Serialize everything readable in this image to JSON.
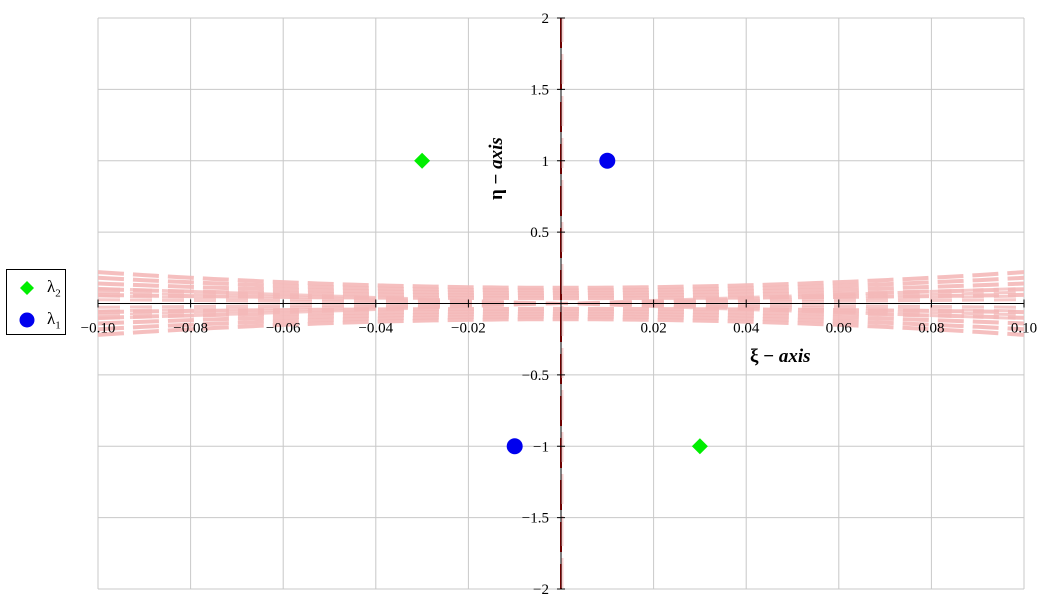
{
  "chart_data": {
    "type": "scatter",
    "xlabel": {
      "symbol": "ξ",
      "dash": " − ",
      "word": "axis"
    },
    "ylabel": {
      "symbol": "η",
      "dash": " − ",
      "word": "axis"
    },
    "xlim": [
      -0.1,
      0.1
    ],
    "ylim": [
      -2,
      2
    ],
    "xticks": [
      -0.1,
      -0.08,
      -0.06,
      -0.04,
      -0.02,
      0.02,
      0.04,
      0.06,
      0.08,
      0.1
    ],
    "xtick_labels": [
      "−0.10",
      "−0.08",
      "−0.06",
      "−0.04",
      "−0.02",
      "0.02",
      "0.04",
      "0.06",
      "0.08",
      "0.10"
    ],
    "yticks": [
      2,
      1.5,
      1,
      0.5,
      -0.5,
      -1,
      -1.5,
      -2
    ],
    "ytick_labels": [
      "2",
      "1.5",
      "1",
      "0.5",
      "−0.5",
      "−1",
      "−1.5",
      "−2"
    ],
    "grid": true,
    "legend_position": "left",
    "series": [
      {
        "name": "λ",
        "subscript": "2",
        "marker": "diamond",
        "color": "#00ee00",
        "points": [
          {
            "x": -0.03,
            "y": 1
          },
          {
            "x": 0.03,
            "y": -1
          }
        ]
      },
      {
        "name": "λ",
        "subscript": "1",
        "marker": "circle",
        "color": "#0000ee",
        "points": [
          {
            "x": 0.01,
            "y": 1
          },
          {
            "x": -0.01,
            "y": -1
          }
        ]
      }
    ],
    "background_curves": {
      "color": "#f4b8b8",
      "style": "dashed",
      "family_a_offsets": [
        0.9,
        1.8,
        2.7,
        3.6,
        4.5
      ],
      "family_b_slopes": [
        0.12,
        0.24,
        0.36,
        0.48
      ]
    },
    "vertical_line": {
      "x": 0,
      "color": "#dd0000",
      "style": "dashed"
    }
  }
}
